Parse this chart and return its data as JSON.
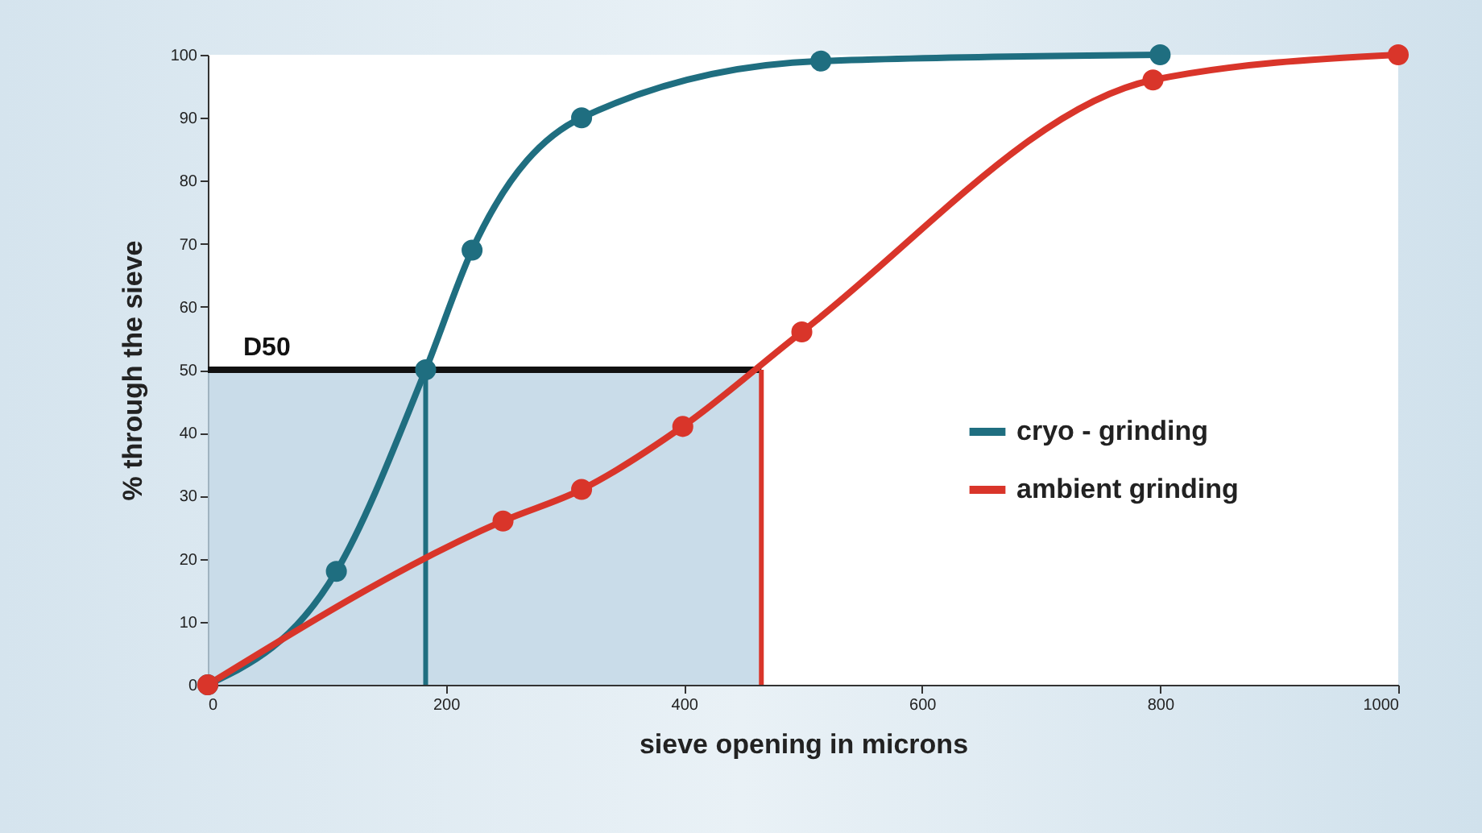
{
  "chart_data": {
    "type": "line",
    "xlabel": "sieve opening in microns",
    "ylabel": "% through the sieve",
    "xlim": [
      0,
      1000
    ],
    "xticks": [
      0,
      200,
      400,
      600,
      800,
      1000
    ],
    "ylim": [
      0,
      100
    ],
    "yticks": [
      0,
      10,
      20,
      30,
      40,
      50,
      60,
      70,
      80,
      90,
      100
    ],
    "series": [
      {
        "name": "cryo - grinding",
        "color": "#1f6e80",
        "x": [
          0,
          108,
          183,
          222,
          314,
          515,
          800
        ],
        "values": [
          0,
          18,
          50,
          69,
          90,
          99,
          100
        ]
      },
      {
        "name": "ambient grinding",
        "color": "#d9352a",
        "x": [
          0,
          248,
          314,
          399,
          499,
          794,
          1000
        ],
        "values": [
          0,
          26,
          31,
          41,
          56,
          96,
          100
        ]
      }
    ],
    "ref_lines": [
      {
        "axis": "y",
        "value": 50,
        "label": "D50",
        "color": "#111111"
      },
      {
        "axis": "x",
        "value": 183,
        "label": null,
        "color": "#1f6e80"
      },
      {
        "axis": "x",
        "value": 465,
        "label": null,
        "color": "#d9352a"
      }
    ],
    "bands": [
      {
        "axis": "x",
        "from": 0,
        "to": 465,
        "label": null,
        "color": "#bcd3e3"
      }
    ],
    "marker": "circle",
    "line_style": "solid",
    "grid": false,
    "legend": "right"
  }
}
